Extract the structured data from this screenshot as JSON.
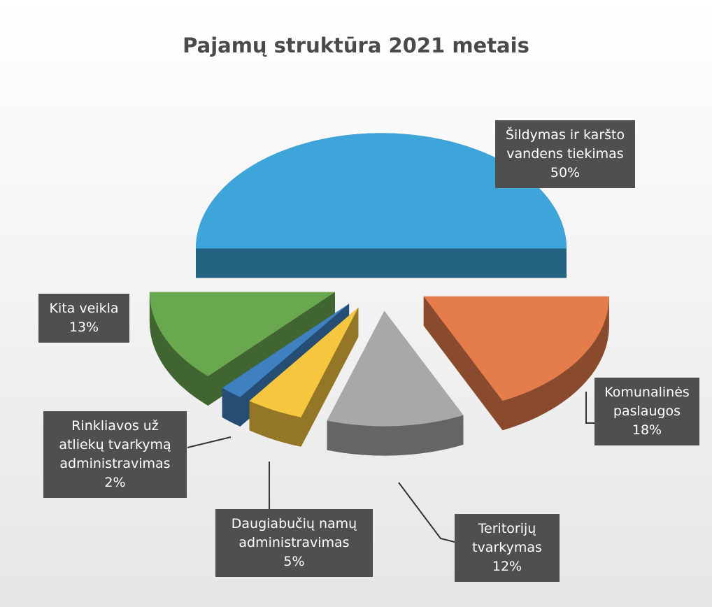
{
  "chart_data": {
    "type": "pie",
    "title": "Pajamų struktūra 2021 metais",
    "categories": [
      "Šildymas ir karšto vandens tiekimas",
      "Komunalinės paslaugos",
      "Teritorijų tvarkymas",
      "Daugiabučių namų administravimas",
      "Rinkliavos už atliekų tvarkymą administravimas",
      "Kita veikla"
    ],
    "values": [
      50,
      18,
      12,
      5,
      2,
      13
    ],
    "value_labels": [
      "50%",
      "18%",
      "12%",
      "5%",
      "2%",
      "13%"
    ],
    "colors": [
      "#3da5d9",
      "#e57c4b",
      "#a8a8a8",
      "#f7c63f",
      "#3f80c0",
      "#6aa850"
    ]
  }
}
